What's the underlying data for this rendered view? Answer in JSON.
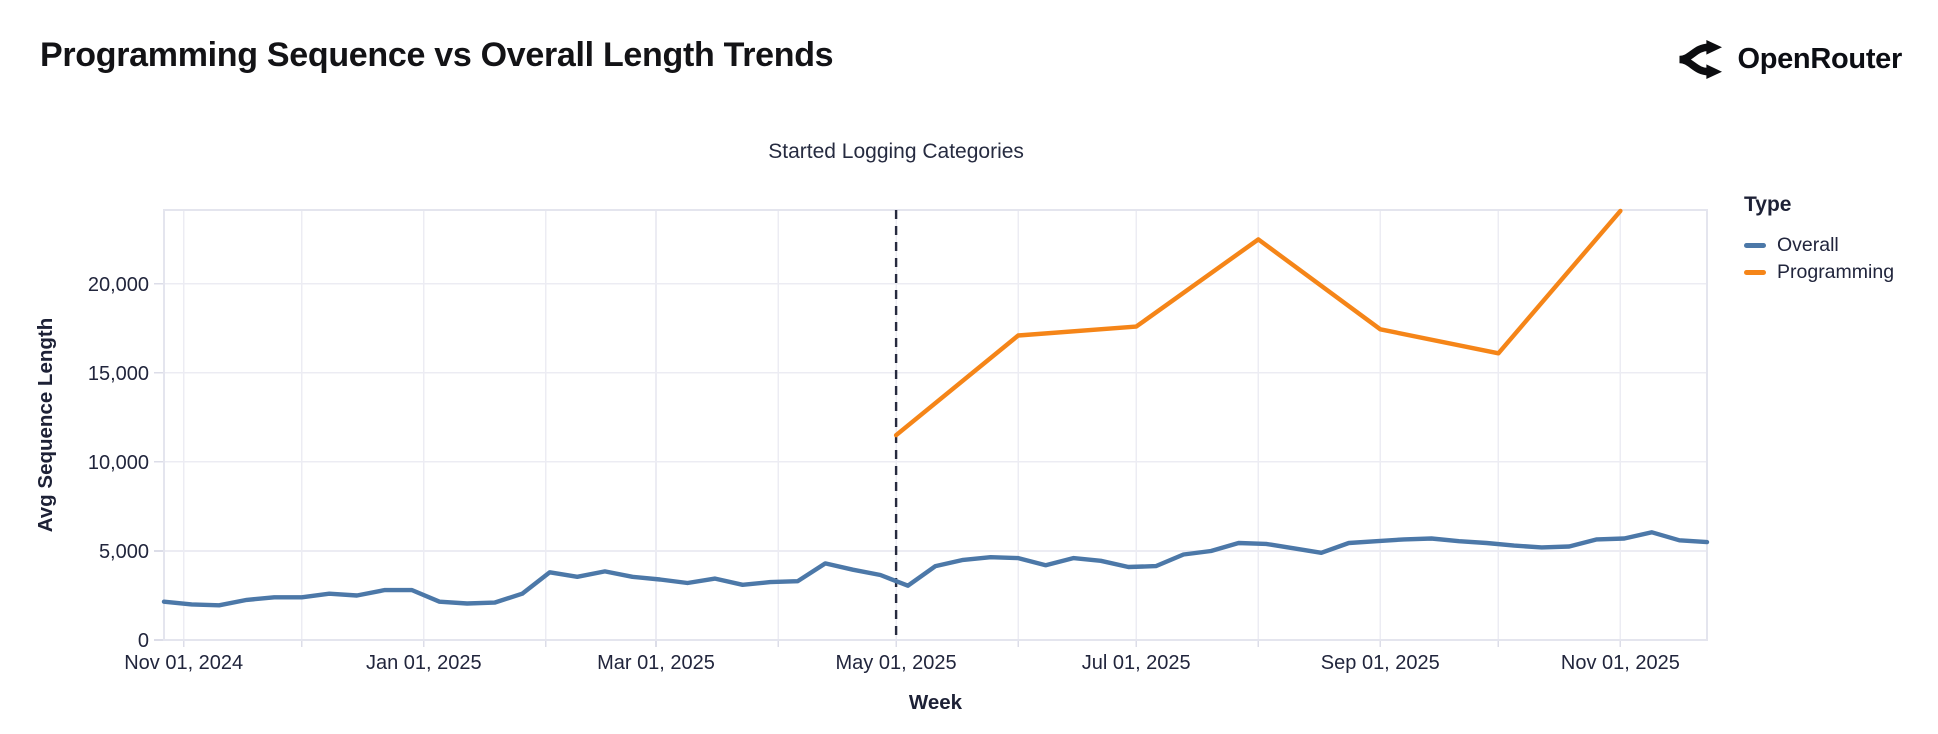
{
  "header": {
    "title": "Programming Sequence vs Overall Length Trends",
    "brand": "OpenRouter"
  },
  "colors": {
    "background": "#ffffff",
    "grid": "#ececf3",
    "axis_line": "#e4e5ee",
    "tick": "#dcdde8",
    "axis_text": "#21253c",
    "annotation_line": "#272b3f"
  },
  "chart_data": {
    "type": "line",
    "title": "Programming Sequence vs Overall Length Trends",
    "xlabel": "Week",
    "ylabel": "Avg Sequence Length",
    "x_domain": [
      "2024-10-27",
      "2025-11-23"
    ],
    "ylim": [
      0,
      24150
    ],
    "grid": true,
    "legend_position": "right",
    "legend": {
      "title": "Type"
    },
    "y_ticks": [
      {
        "value": 0,
        "label": "0"
      },
      {
        "value": 5000,
        "label": "5,000"
      },
      {
        "value": 10000,
        "label": "10,000"
      },
      {
        "value": 15000,
        "label": "15,000"
      },
      {
        "value": 20000,
        "label": "20,000"
      }
    ],
    "x_ticks": [
      {
        "date": "2024-11-01",
        "label": "Nov 01, 2024"
      },
      {
        "date": "2025-01-01",
        "label": "Jan 01, 2025"
      },
      {
        "date": "2025-03-01",
        "label": "Mar 01, 2025"
      },
      {
        "date": "2025-05-01",
        "label": "May 01, 2025"
      },
      {
        "date": "2025-07-01",
        "label": "Jul 01, 2025"
      },
      {
        "date": "2025-09-01",
        "label": "Sep 01, 2025"
      },
      {
        "date": "2025-11-01",
        "label": "Nov 01, 2025"
      }
    ],
    "month_gridlines": [
      "2024-11-01",
      "2024-12-01",
      "2025-01-01",
      "2025-02-01",
      "2025-03-01",
      "2025-04-01",
      "2025-05-01",
      "2025-06-01",
      "2025-07-01",
      "2025-08-01",
      "2025-09-01",
      "2025-10-01",
      "2025-11-01"
    ],
    "annotation": {
      "label": "Started Logging Categories",
      "date": "2025-05-01"
    },
    "series": [
      {
        "name": "Overall",
        "color": "#4c78a8",
        "points": [
          [
            "2024-10-27",
            2150
          ],
          [
            "2024-11-03",
            2000
          ],
          [
            "2024-11-10",
            1950
          ],
          [
            "2024-11-17",
            2250
          ],
          [
            "2024-11-24",
            2400
          ],
          [
            "2024-12-01",
            2400
          ],
          [
            "2024-12-08",
            2600
          ],
          [
            "2024-12-15",
            2500
          ],
          [
            "2024-12-22",
            2800
          ],
          [
            "2024-12-29",
            2800
          ],
          [
            "2025-01-05",
            2150
          ],
          [
            "2025-01-12",
            2050
          ],
          [
            "2025-01-19",
            2100
          ],
          [
            "2025-01-26",
            2600
          ],
          [
            "2025-02-02",
            3800
          ],
          [
            "2025-02-09",
            3550
          ],
          [
            "2025-02-16",
            3850
          ],
          [
            "2025-02-23",
            3550
          ],
          [
            "2025-03-02",
            3400
          ],
          [
            "2025-03-09",
            3200
          ],
          [
            "2025-03-16",
            3450
          ],
          [
            "2025-03-23",
            3100
          ],
          [
            "2025-03-30",
            3250
          ],
          [
            "2025-04-06",
            3300
          ],
          [
            "2025-04-13",
            4300
          ],
          [
            "2025-04-20",
            3950
          ],
          [
            "2025-04-27",
            3650
          ],
          [
            "2025-05-04",
            3050
          ],
          [
            "2025-05-11",
            4150
          ],
          [
            "2025-05-18",
            4500
          ],
          [
            "2025-05-25",
            4650
          ],
          [
            "2025-06-01",
            4600
          ],
          [
            "2025-06-08",
            4200
          ],
          [
            "2025-06-15",
            4600
          ],
          [
            "2025-06-22",
            4450
          ],
          [
            "2025-06-29",
            4100
          ],
          [
            "2025-07-06",
            4150
          ],
          [
            "2025-07-13",
            4800
          ],
          [
            "2025-07-20",
            5000
          ],
          [
            "2025-07-27",
            5450
          ],
          [
            "2025-08-03",
            5400
          ],
          [
            "2025-08-10",
            5150
          ],
          [
            "2025-08-17",
            4900
          ],
          [
            "2025-08-24",
            5450
          ],
          [
            "2025-08-31",
            5550
          ],
          [
            "2025-09-07",
            5650
          ],
          [
            "2025-09-14",
            5700
          ],
          [
            "2025-09-21",
            5550
          ],
          [
            "2025-09-28",
            5450
          ],
          [
            "2025-10-05",
            5300
          ],
          [
            "2025-10-12",
            5200
          ],
          [
            "2025-10-19",
            5250
          ],
          [
            "2025-10-26",
            5650
          ],
          [
            "2025-11-02",
            5700
          ],
          [
            "2025-11-09",
            6050
          ],
          [
            "2025-11-16",
            5600
          ],
          [
            "2025-11-23",
            5500
          ]
        ]
      },
      {
        "name": "Programming",
        "color": "#f58518",
        "points": [
          [
            "2025-05-01",
            11500
          ],
          [
            "2025-06-01",
            17100
          ],
          [
            "2025-07-01",
            17600
          ],
          [
            "2025-08-01",
            22500
          ],
          [
            "2025-09-01",
            17450
          ],
          [
            "2025-10-01",
            16100
          ],
          [
            "2025-11-01",
            24100
          ]
        ]
      }
    ]
  }
}
